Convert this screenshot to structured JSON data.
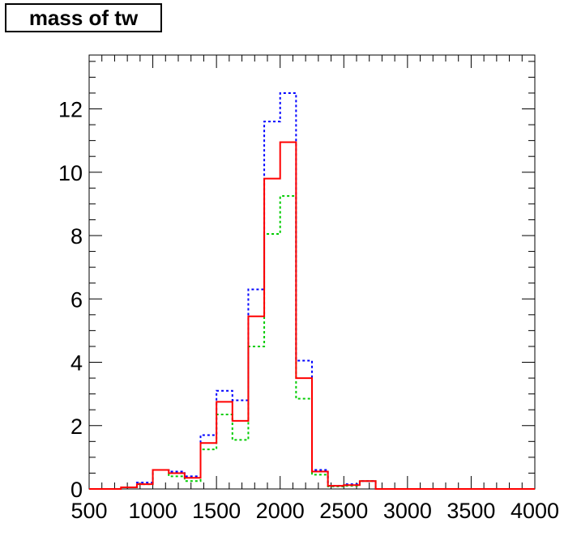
{
  "chart_data": {
    "type": "histogram",
    "title": "mass of tw",
    "xlabel": "",
    "ylabel": "",
    "xlim": [
      500,
      4000
    ],
    "ylim": [
      0,
      13.7
    ],
    "x_tick_labels": [
      "500",
      "1000",
      "1500",
      "2000",
      "2500",
      "3000",
      "3500",
      "4000"
    ],
    "y_tick_labels": [
      "0",
      "2",
      "4",
      "6",
      "8",
      "10",
      "12"
    ],
    "grid": false,
    "bins": {
      "edges": [
        500,
        625,
        750,
        875,
        1000,
        1125,
        1250,
        1375,
        1500,
        1625,
        1750,
        1875,
        2000,
        2125,
        2250,
        2375,
        2500,
        2625,
        2750,
        2875,
        3000,
        3125,
        3250,
        3375,
        3500,
        3625,
        3750,
        3875,
        4000
      ]
    },
    "series": [
      {
        "color": "#0000ff",
        "style": "dotted",
        "values": [
          0,
          0,
          0.05,
          0.2,
          0.6,
          0.55,
          0.4,
          1.7,
          3.1,
          2.8,
          6.3,
          11.6,
          12.5,
          4.05,
          0.6,
          0.1,
          0.15,
          0.25,
          0,
          0,
          0,
          0,
          0,
          0,
          0,
          0,
          0,
          0
        ]
      },
      {
        "color": "#ff0000",
        "style": "solid",
        "values": [
          0,
          0,
          0.05,
          0.15,
          0.6,
          0.5,
          0.35,
          1.45,
          2.75,
          2.15,
          5.45,
          9.8,
          10.95,
          3.5,
          0.55,
          0.1,
          0.12,
          0.25,
          0,
          0,
          0,
          0,
          0,
          0,
          0,
          0,
          0,
          0
        ]
      },
      {
        "color": "#00cc00",
        "style": "dotted",
        "values": [
          0,
          0,
          0.05,
          0.15,
          0.6,
          0.4,
          0.25,
          1.25,
          2.35,
          1.55,
          4.5,
          8.05,
          9.25,
          2.85,
          0.45,
          0.08,
          0.1,
          0.25,
          0,
          0,
          0,
          0,
          0,
          0,
          0,
          0,
          0,
          0
        ]
      }
    ]
  }
}
